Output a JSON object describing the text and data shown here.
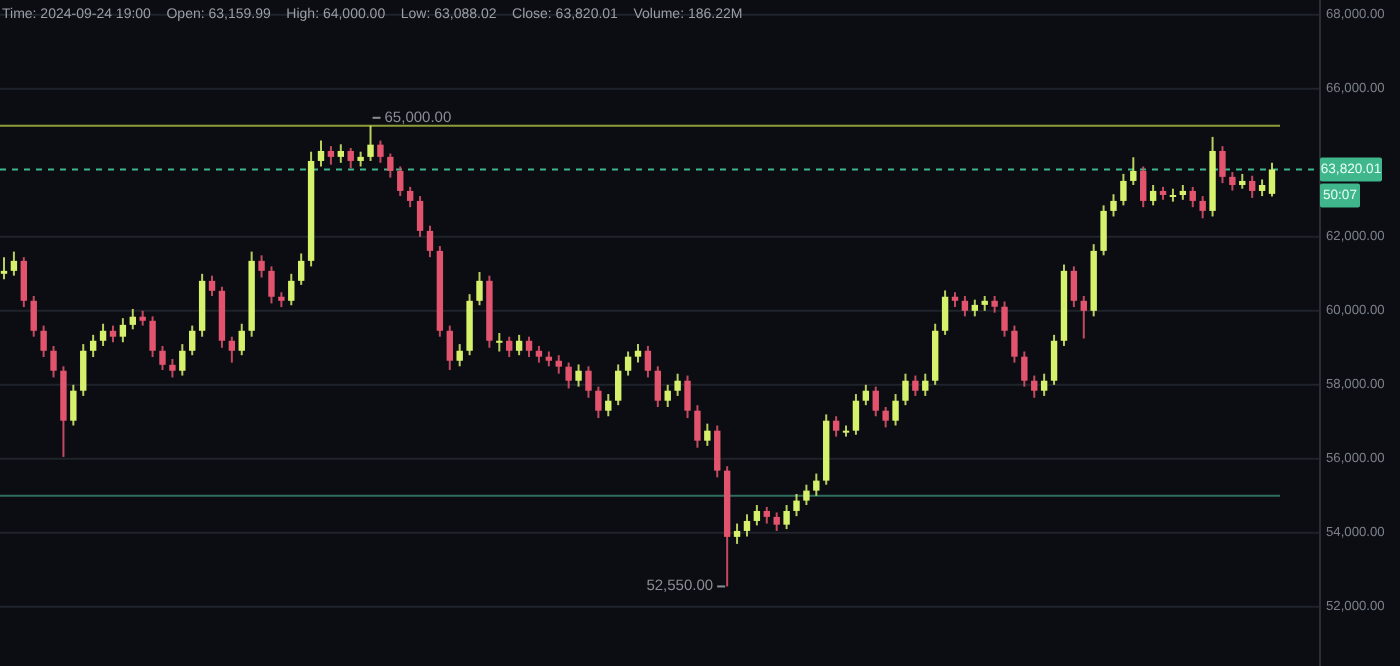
{
  "chart_data": {
    "type": "candlestick",
    "title": "Time: 2024-09-24 19:00    Open: 63,159.99    High: 64,000.00    Low: 63,088.02    Close: 63,820.01    Volume: 186.22M",
    "categories": [
      null,
      null,
      null,
      null,
      null,
      null,
      null,
      null,
      null,
      null,
      null,
      null,
      null,
      null,
      null,
      null,
      null,
      null,
      null,
      null,
      null,
      null,
      null,
      null,
      null,
      null,
      null,
      null,
      null,
      null,
      null,
      null,
      null,
      null,
      null,
      null,
      null,
      null,
      null,
      null,
      null,
      null,
      null,
      null,
      null,
      null,
      null,
      null,
      null,
      null,
      null,
      null,
      null,
      null,
      null,
      null,
      null,
      null,
      null,
      null,
      null,
      null,
      null,
      null,
      null,
      null,
      null,
      null,
      null,
      null,
      null,
      null,
      null,
      null,
      null,
      null,
      null,
      null,
      null,
      null,
      null,
      null,
      null,
      null,
      null,
      null,
      null,
      null,
      null,
      null,
      null,
      null,
      null,
      null,
      null,
      null,
      null,
      null,
      null,
      null,
      null,
      null,
      null,
      null,
      null,
      null,
      null,
      null,
      null,
      null,
      null,
      null,
      null,
      null,
      null,
      null,
      null,
      null,
      null,
      null,
      null,
      null,
      null,
      null,
      null,
      null,
      null,
      null,
      null
    ],
    "ohlc": [
      [
        61000,
        61450,
        60850,
        61080
      ],
      [
        61080,
        61600,
        60950,
        61350
      ],
      [
        61350,
        61450,
        60100,
        60270
      ],
      [
        60270,
        60400,
        59300,
        59460
      ],
      [
        59460,
        59600,
        58750,
        58920
      ],
      [
        58920,
        59050,
        58200,
        58380
      ],
      [
        58380,
        58500,
        56050,
        57030
      ],
      [
        57030,
        58000,
        56900,
        57840
      ],
      [
        57840,
        59100,
        57700,
        58920
      ],
      [
        58920,
        59350,
        58750,
        59190
      ],
      [
        59190,
        59650,
        59050,
        59460
      ],
      [
        59460,
        59600,
        59150,
        59300
      ],
      [
        59300,
        59800,
        59150,
        59620
      ],
      [
        59620,
        60050,
        59500,
        59840
      ],
      [
        59840,
        60000,
        59600,
        59730
      ],
      [
        59730,
        59850,
        58750,
        58920
      ],
      [
        58920,
        59050,
        58400,
        58540
      ],
      [
        58540,
        58700,
        58200,
        58380
      ],
      [
        58380,
        59100,
        58250,
        58920
      ],
      [
        58920,
        59600,
        58800,
        59460
      ],
      [
        59460,
        61000,
        59300,
        60810
      ],
      [
        60810,
        60950,
        60400,
        60540
      ],
      [
        60540,
        60650,
        59000,
        59190
      ],
      [
        59190,
        59300,
        58600,
        58920
      ],
      [
        58920,
        59650,
        58800,
        59460
      ],
      [
        59460,
        61600,
        59300,
        61350
      ],
      [
        61350,
        61500,
        60900,
        61080
      ],
      [
        61080,
        61200,
        60200,
        60380
      ],
      [
        60380,
        60500,
        60100,
        60270
      ],
      [
        60270,
        61000,
        60150,
        60810
      ],
      [
        60810,
        61550,
        60700,
        61350
      ],
      [
        61350,
        64300,
        61200,
        64050
      ],
      [
        64050,
        64600,
        63900,
        64320
      ],
      [
        64320,
        64450,
        63950,
        64160
      ],
      [
        64160,
        64500,
        64000,
        64320
      ],
      [
        64320,
        64400,
        63850,
        64050
      ],
      [
        64050,
        64300,
        63900,
        64160
      ],
      [
        64160,
        65000,
        64050,
        64490
      ],
      [
        64490,
        64600,
        64000,
        64160
      ],
      [
        64160,
        64250,
        63600,
        63780
      ],
      [
        63780,
        63900,
        63100,
        63240
      ],
      [
        63240,
        63350,
        62800,
        62970
      ],
      [
        62970,
        63100,
        62000,
        62160
      ],
      [
        62160,
        62300,
        61450,
        61620
      ],
      [
        61620,
        61750,
        59300,
        59460
      ],
      [
        59460,
        59600,
        58400,
        58650
      ],
      [
        58650,
        59100,
        58500,
        58920
      ],
      [
        58920,
        60450,
        58800,
        60270
      ],
      [
        60270,
        61050,
        60150,
        60810
      ],
      [
        60810,
        60950,
        59000,
        59190
      ],
      [
        59190,
        59400,
        58900,
        59190
      ],
      [
        59190,
        59300,
        58750,
        58920
      ],
      [
        58920,
        59350,
        58800,
        59190
      ],
      [
        59190,
        59300,
        58750,
        58920
      ],
      [
        58920,
        59050,
        58600,
        58760
      ],
      [
        58760,
        58900,
        58500,
        58650
      ],
      [
        58650,
        58800,
        58300,
        58490
      ],
      [
        58490,
        58600,
        57900,
        58110
      ],
      [
        58110,
        58550,
        57950,
        58380
      ],
      [
        58380,
        58500,
        57650,
        57840
      ],
      [
        57840,
        57950,
        57100,
        57300
      ],
      [
        57300,
        57750,
        57150,
        57570
      ],
      [
        57570,
        58550,
        57450,
        58380
      ],
      [
        58380,
        58900,
        58250,
        58760
      ],
      [
        58760,
        59100,
        58600,
        58920
      ],
      [
        58920,
        59050,
        58200,
        58380
      ],
      [
        58380,
        58500,
        57400,
        57570
      ],
      [
        57570,
        58000,
        57400,
        57840
      ],
      [
        57840,
        58300,
        57700,
        58110
      ],
      [
        58110,
        58250,
        57100,
        57300
      ],
      [
        57300,
        57450,
        56300,
        56490
      ],
      [
        56490,
        56950,
        56350,
        56760
      ],
      [
        56760,
        56900,
        55500,
        55680
      ],
      [
        55680,
        55800,
        52550,
        53890
      ],
      [
        53890,
        54250,
        53700,
        54050
      ],
      [
        54050,
        54500,
        53900,
        54320
      ],
      [
        54320,
        54750,
        54200,
        54590
      ],
      [
        54590,
        54700,
        54250,
        54430
      ],
      [
        54430,
        54550,
        54050,
        54220
      ],
      [
        54220,
        54750,
        54100,
        54590
      ],
      [
        54590,
        55050,
        54450,
        54870
      ],
      [
        54870,
        55300,
        54750,
        55140
      ],
      [
        55140,
        55600,
        55000,
        55410
      ],
      [
        55410,
        57200,
        55300,
        57030
      ],
      [
        57030,
        57150,
        56600,
        56760
      ],
      [
        56760,
        56900,
        56600,
        56760
      ],
      [
        56760,
        57750,
        56650,
        57570
      ],
      [
        57570,
        58000,
        57450,
        57840
      ],
      [
        57840,
        57950,
        57150,
        57300
      ],
      [
        57300,
        57400,
        56850,
        57030
      ],
      [
        57030,
        57750,
        56900,
        57570
      ],
      [
        57570,
        58300,
        57450,
        58110
      ],
      [
        58110,
        58250,
        57700,
        57840
      ],
      [
        57840,
        58300,
        57700,
        58110
      ],
      [
        58110,
        59650,
        58000,
        59460
      ],
      [
        59460,
        60550,
        59350,
        60380
      ],
      [
        60380,
        60500,
        60100,
        60270
      ],
      [
        60270,
        60400,
        59850,
        60000
      ],
      [
        60000,
        60300,
        59850,
        60160
      ],
      [
        60160,
        60400,
        60000,
        60270
      ],
      [
        60270,
        60400,
        59950,
        60110
      ],
      [
        60110,
        60250,
        59300,
        59460
      ],
      [
        59460,
        59600,
        58600,
        58760
      ],
      [
        58760,
        58900,
        57950,
        58110
      ],
      [
        58110,
        58250,
        57650,
        57840
      ],
      [
        57840,
        58300,
        57700,
        58110
      ],
      [
        58110,
        59350,
        58000,
        59190
      ],
      [
        59190,
        61250,
        59050,
        61080
      ],
      [
        61080,
        61200,
        60100,
        60270
      ],
      [
        60270,
        60400,
        59250,
        60000
      ],
      [
        60000,
        61800,
        59850,
        61620
      ],
      [
        61620,
        62850,
        61500,
        62700
      ],
      [
        62700,
        63150,
        62550,
        62970
      ],
      [
        62970,
        63700,
        62850,
        63510
      ],
      [
        63510,
        64150,
        63400,
        63780
      ],
      [
        63780,
        63900,
        62800,
        62970
      ],
      [
        62970,
        63400,
        62850,
        63240
      ],
      [
        63240,
        63350,
        63000,
        63130
      ],
      [
        63130,
        63300,
        62950,
        63130
      ],
      [
        63130,
        63400,
        63000,
        63240
      ],
      [
        63240,
        63350,
        62800,
        62970
      ],
      [
        62970,
        63100,
        62500,
        62700
      ],
      [
        62700,
        64700,
        62550,
        64320
      ],
      [
        64320,
        64450,
        63450,
        63620
      ],
      [
        63620,
        63750,
        63250,
        63400
      ],
      [
        63400,
        63700,
        63300,
        63510
      ],
      [
        63510,
        63650,
        63050,
        63240
      ],
      [
        63240,
        63550,
        63100,
        63400
      ],
      [
        63159.99,
        64000,
        63088.02,
        63820.01
      ]
    ],
    "colors": [
      "#d6f26c",
      "#d6f26c",
      "#e2546e",
      "#e2546e",
      "#e2546e",
      "#e2546e",
      "#e2546e",
      "#d6f26c",
      "#d6f26c",
      "#d6f26c",
      "#d6f26c",
      "#e2546e",
      "#d6f26c",
      "#d6f26c",
      "#e2546e",
      "#e2546e",
      "#e2546e",
      "#e2546e",
      "#d6f26c",
      "#d6f26c",
      "#d6f26c",
      "#e2546e",
      "#e2546e",
      "#e2546e",
      "#d6f26c",
      "#d6f26c",
      "#e2546e",
      "#e2546e",
      "#e2546e",
      "#d6f26c",
      "#d6f26c",
      "#d6f26c",
      "#d6f26c",
      "#e2546e",
      "#d6f26c",
      "#e2546e",
      "#d6f26c",
      "#d6f26c",
      "#e2546e",
      "#e2546e",
      "#e2546e",
      "#e2546e",
      "#e2546e",
      "#e2546e",
      "#e2546e",
      "#e2546e",
      "#d6f26c",
      "#d6f26c",
      "#d6f26c",
      "#e2546e",
      "#d6f26c",
      "#e2546e",
      "#d6f26c",
      "#e2546e",
      "#e2546e",
      "#e2546e",
      "#e2546e",
      "#e2546e",
      "#d6f26c",
      "#e2546e",
      "#e2546e",
      "#d6f26c",
      "#d6f26c",
      "#d6f26c",
      "#d6f26c",
      "#e2546e",
      "#e2546e",
      "#d6f26c",
      "#d6f26c",
      "#e2546e",
      "#e2546e",
      "#d6f26c",
      "#e2546e",
      "#e2546e",
      "#d6f26c",
      "#d6f26c",
      "#d6f26c",
      "#e2546e",
      "#e2546e",
      "#d6f26c",
      "#d6f26c",
      "#d6f26c",
      "#d6f26c",
      "#d6f26c",
      "#e2546e",
      "#d6f26c",
      "#d6f26c",
      "#d6f26c",
      "#e2546e",
      "#e2546e",
      "#d6f26c",
      "#d6f26c",
      "#e2546e",
      "#d6f26c",
      "#d6f26c",
      "#d6f26c",
      "#e2546e",
      "#e2546e",
      "#d6f26c",
      "#d6f26c",
      "#e2546e",
      "#e2546e",
      "#e2546e",
      "#e2546e",
      "#e2546e",
      "#d6f26c",
      "#d6f26c",
      "#d6f26c",
      "#e2546e",
      "#e2546e",
      "#d6f26c",
      "#d6f26c",
      "#d6f26c",
      "#d6f26c",
      "#d6f26c",
      "#e2546e",
      "#d6f26c",
      "#e2546e",
      "#d6f26c",
      "#d6f26c",
      "#e2546e",
      "#e2546e",
      "#d6f26c",
      "#e2546e",
      "#e2546e",
      "#d6f26c",
      "#e2546e",
      "#d6f26c",
      "#d6f26c"
    ],
    "ylim": [
      50400,
      68400
    ],
    "yticks": [
      {
        "value": 52000,
        "label": "52,000.00"
      },
      {
        "value": 54000,
        "label": "54,000.00"
      },
      {
        "value": 56000,
        "label": "56,000.00"
      },
      {
        "value": 58000,
        "label": "58,000.00"
      },
      {
        "value": 60000,
        "label": "60,000.00"
      },
      {
        "value": 62000,
        "label": "62,000.00"
      },
      {
        "value": 66000,
        "label": "66,000.00"
      },
      {
        "value": 68000,
        "label": "68,000.00"
      }
    ],
    "grid": "y",
    "ref_lines": [
      {
        "axis": "y",
        "value": 63820.01,
        "label": "63,820.01",
        "color": "#3fb68b",
        "line_style": "dashed"
      },
      {
        "axis": "y",
        "value": 65000,
        "color": "#8f9c3a",
        "line_style": "solid"
      },
      {
        "axis": "y",
        "value": 55000,
        "color": "#2f6e5c",
        "line_style": "solid"
      }
    ],
    "annotations": [
      "65,000.00",
      "52,550.00",
      "50:07"
    ]
  }
}
